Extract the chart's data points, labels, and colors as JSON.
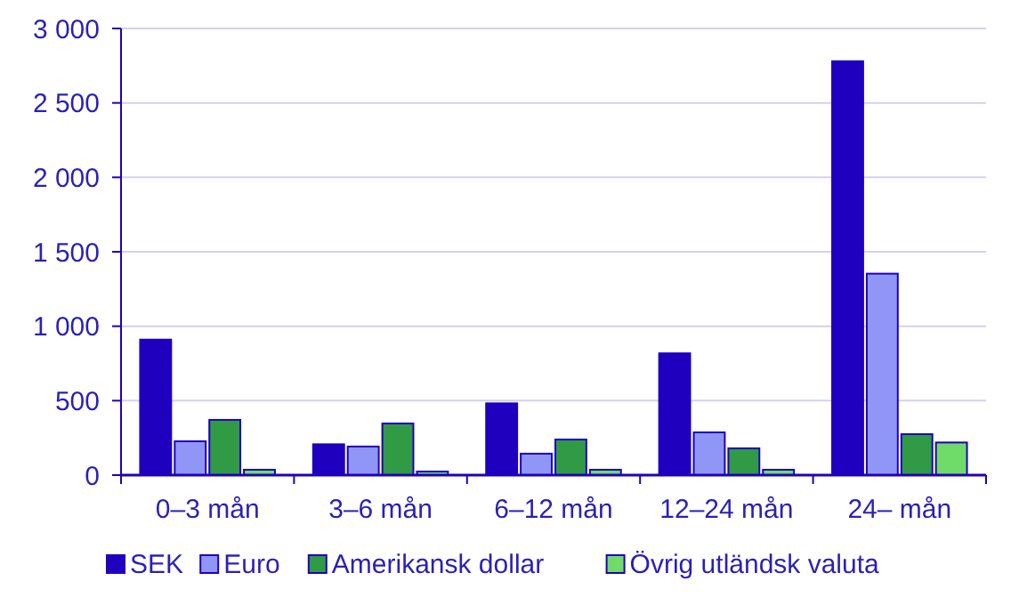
{
  "chart_data": {
    "type": "bar",
    "categories": [
      "0–3 mån",
      "3–6 mån",
      "6–12 mån",
      "12–24 mån",
      "24– mån"
    ],
    "series": [
      {
        "name": "SEK",
        "color": "#1e00be",
        "values": [
          910,
          207,
          482,
          818,
          2780
        ]
      },
      {
        "name": "Euro",
        "color": "#9096f5",
        "values": [
          227,
          192,
          144,
          287,
          1353
        ]
      },
      {
        "name": "Amerikansk dollar",
        "color": "#319a45",
        "values": [
          371,
          347,
          239,
          180,
          275
        ]
      },
      {
        "name": "Övrig utländsk valuta",
        "color": "#6fdc6a",
        "values": [
          36,
          24,
          36,
          36,
          219
        ]
      }
    ],
    "ylim": [
      0,
      3000
    ],
    "yticks": [
      {
        "value": 0,
        "label": "0"
      },
      {
        "value": 500,
        "label": "500"
      },
      {
        "value": 1000,
        "label": "1 000"
      },
      {
        "value": 1500,
        "label": "1 500"
      },
      {
        "value": 2000,
        "label": "2 000"
      },
      {
        "value": 2500,
        "label": "2 500"
      },
      {
        "value": 3000,
        "label": "3 000"
      }
    ],
    "grid": "y",
    "legend": "bottom"
  }
}
